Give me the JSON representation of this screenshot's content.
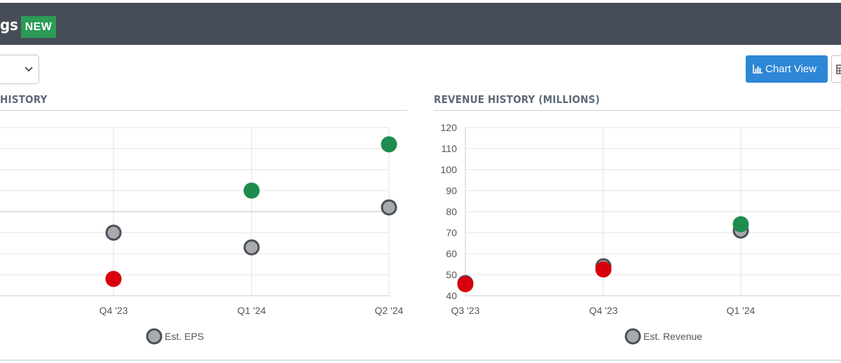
{
  "header": {
    "title_fragment": "gs",
    "badge": "NEW"
  },
  "controls": {
    "chart_view_label": "Chart View",
    "chart_view_icon": "bar-chart-icon",
    "table_view_icon": "table-icon",
    "select_icon": "chevron-down-icon"
  },
  "colors": {
    "header_bg": "#474d58",
    "badge_green": "#2b9b56",
    "beat": "#1e8c4e",
    "miss": "#d8000c",
    "estimate_fill": "#a8aaad",
    "estimate_stroke": "#4a4f58",
    "button_blue": "#2e86d6"
  },
  "chart_data": [
    {
      "type": "scatter",
      "title": "HISTORY",
      "categories": [
        "Q4 '23",
        "Q1 '24",
        "Q2 '24"
      ],
      "series": [
        {
          "name": "Est. EPS",
          "role": "estimate",
          "values": [
            0.2,
            0.13,
            0.32
          ]
        },
        {
          "role": "actual",
          "values": [
            -0.02,
            0.4,
            0.62
          ],
          "status": [
            "miss",
            "beat",
            "beat"
          ]
        }
      ],
      "ylim": [
        -0.1,
        0.7
      ],
      "zero_line": 0.3,
      "grid": true,
      "legend": "bottom",
      "legend_items": [
        {
          "name": "Est. EPS"
        }
      ]
    },
    {
      "type": "scatter",
      "title": "REVENUE HISTORY (MILLIONS)",
      "categories": [
        "Q3 '23",
        "Q4 '23",
        "Q1 '24"
      ],
      "series": [
        {
          "name": "Est. Revenue",
          "role": "estimate",
          "values": [
            46,
            54,
            71
          ]
        },
        {
          "role": "actual",
          "values": [
            45.5,
            52.5,
            74
          ],
          "status": [
            "miss",
            "miss",
            "beat"
          ]
        }
      ],
      "yticks": [
        40,
        50,
        60,
        70,
        80,
        90,
        100,
        110,
        120
      ],
      "ylim": [
        40,
        120
      ],
      "grid": true,
      "legend": "bottom",
      "legend_items": [
        {
          "name": "Est. Revenue"
        }
      ]
    }
  ]
}
